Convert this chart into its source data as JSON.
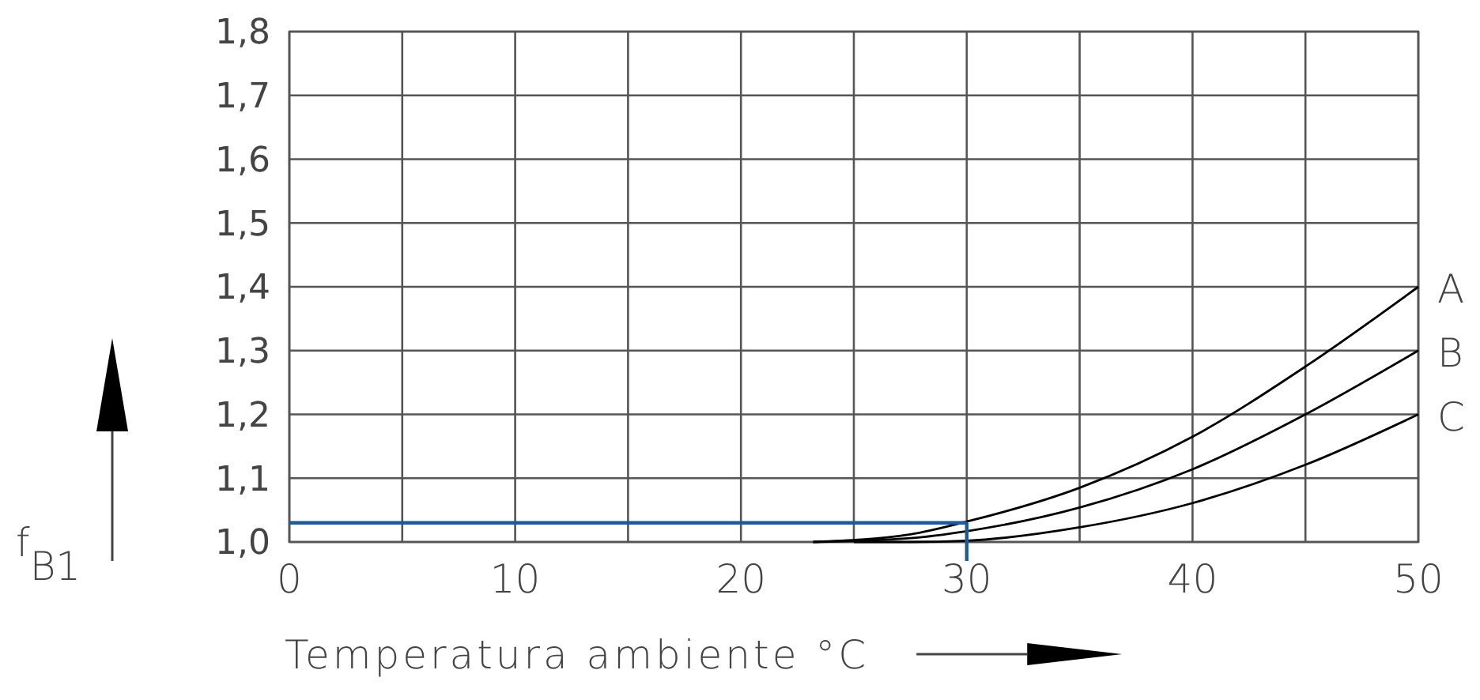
{
  "chart_data": {
    "type": "line",
    "xlabel": "Temperatura ambiente °C",
    "ylabel": "f$_{B1}$",
    "xlim": [
      0,
      50
    ],
    "ylim": [
      1.0,
      1.8
    ],
    "xticks": [
      0,
      {
        "value": 5,
        "label": null
      },
      10,
      {
        "value": 15,
        "label": null
      },
      20,
      {
        "value": 25,
        "label": null
      },
      30,
      {
        "value": 35,
        "label": null
      },
      40,
      {
        "value": 45,
        "label": null
      },
      50
    ],
    "yticks": [
      {
        "value": 1.0,
        "label": "1,0"
      },
      {
        "value": 1.1,
        "label": "1,1"
      },
      {
        "value": 1.2,
        "label": "1,2"
      },
      {
        "value": 1.3,
        "label": "1,3"
      },
      {
        "value": 1.4,
        "label": "1,4"
      },
      {
        "value": 1.5,
        "label": "1,5"
      },
      {
        "value": 1.6,
        "label": "1,6"
      },
      {
        "value": 1.7,
        "label": "1,7"
      },
      {
        "value": 1.8,
        "label": "1,8"
      }
    ],
    "grid": true,
    "marker": "none",
    "line_style": "solid",
    "legend": false,
    "series": [
      {
        "name": "A",
        "color": "#000000",
        "x": [
          23.2,
          27.5,
          30,
          35,
          40,
          45,
          50
        ],
        "values": [
          1.0,
          1.012,
          1.032,
          1.085,
          1.165,
          1.275,
          1.4
        ]
      },
      {
        "name": "B",
        "color": "#000000",
        "x": [
          23.2,
          27.5,
          30,
          35,
          40,
          45,
          50
        ],
        "values": [
          1.0,
          1.006,
          1.017,
          1.054,
          1.114,
          1.2,
          1.3
        ]
      },
      {
        "name": "C",
        "color": "#000000",
        "x": [
          25,
          27.5,
          30,
          35,
          40,
          45,
          50
        ],
        "values": [
          1.0,
          1.0,
          1.002,
          1.023,
          1.061,
          1.121,
          1.2
        ]
      },
      {
        "color": "#1f5a96",
        "x": [
          0,
          30
        ],
        "values": [
          1.03,
          1.03
        ]
      }
    ]
  }
}
